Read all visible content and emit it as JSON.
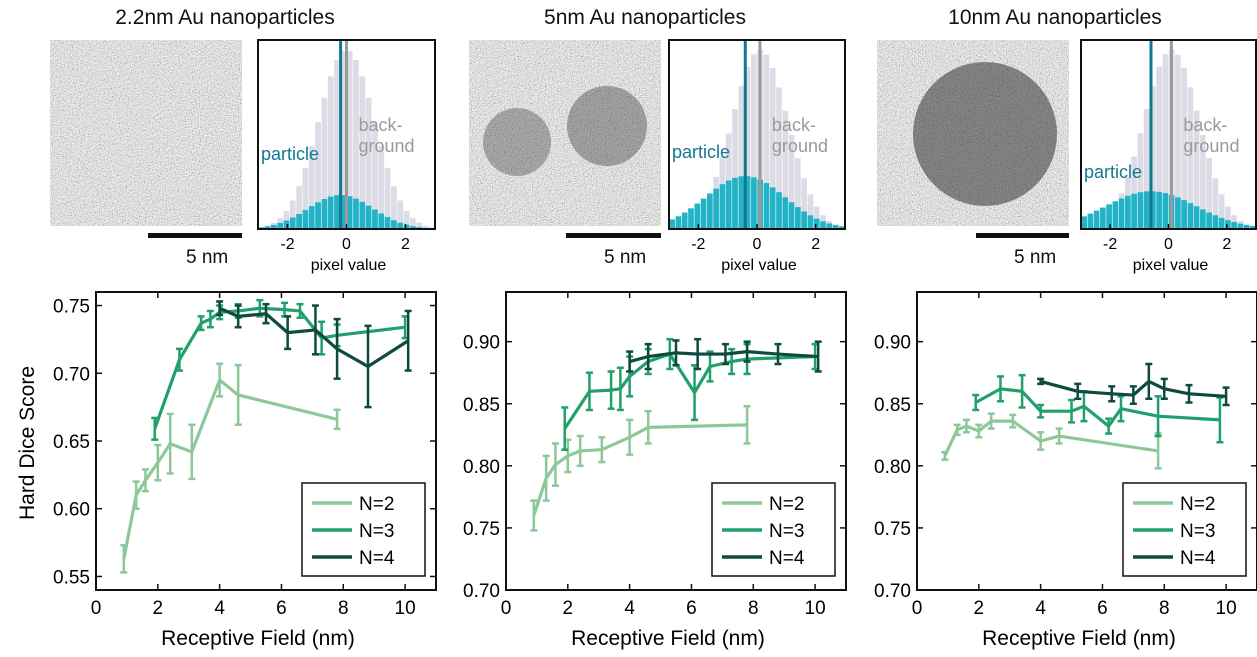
{
  "panels": [
    {
      "title": "2.2nm Au nanoparticles",
      "scale_label": "5 nm",
      "histogram": {
        "xlabel": "pixel value",
        "xticks": [
          "-2",
          "0",
          "2"
        ],
        "particle_label": "particle",
        "background_label": [
          "back-",
          "ground"
        ],
        "particle_mean": -0.2,
        "background_mean": 0.0
      }
    },
    {
      "title": "5nm Au nanoparticles",
      "scale_label": "5 nm",
      "histogram": {
        "xlabel": "pixel value",
        "xticks": [
          "-2",
          "0",
          "2"
        ],
        "particle_label": "particle",
        "background_label": [
          "back-",
          "ground"
        ],
        "particle_mean": -0.4,
        "background_mean": 0.1
      }
    },
    {
      "title": "10nm Au nanoparticles",
      "scale_label": "5 nm",
      "histogram": {
        "xlabel": "pixel value",
        "xticks": [
          "-2",
          "0",
          "2"
        ],
        "particle_label": "particle",
        "background_label": [
          "back-",
          "ground"
        ],
        "particle_mean": -0.6,
        "background_mean": 0.1
      }
    }
  ],
  "colors": {
    "N2": "#8ec89a",
    "N3": "#22a06b",
    "N4": "#0d4a40",
    "particle": "#23b3c6",
    "particle_line": "#12788e",
    "background": "#dcdce6",
    "background_line": "#9a9a9a"
  },
  "chart_data": [
    {
      "type": "line",
      "xlabel": "Receptive Field (nm)",
      "ylabel": "Hard Dice Score",
      "xlim": [
        0,
        11
      ],
      "ylim": [
        0.54,
        0.76
      ],
      "xticks": [
        0,
        2,
        4,
        6,
        8,
        10
      ],
      "yticks": [
        0.55,
        0.6,
        0.65,
        0.7,
        0.75
      ],
      "ytick_labels": [
        "0.55",
        "0.60",
        "0.65",
        "0.70",
        "0.75"
      ],
      "legend": "bottom-right",
      "series": [
        {
          "name": "N=2",
          "x": [
            0.9,
            1.3,
            1.6,
            2.0,
            2.4,
            3.1,
            4.0,
            4.6,
            7.8
          ],
          "y": [
            0.563,
            0.61,
            0.621,
            0.634,
            0.648,
            0.642,
            0.695,
            0.684,
            0.666
          ],
          "err": [
            0.01,
            0.01,
            0.008,
            0.013,
            0.022,
            0.02,
            0.012,
            0.022,
            0.007
          ]
        },
        {
          "name": "N=3",
          "x": [
            1.9,
            2.7,
            3.4,
            3.7,
            4.0,
            4.6,
            5.3,
            6.1,
            6.6,
            7.3,
            7.8,
            10.0
          ],
          "y": [
            0.659,
            0.71,
            0.737,
            0.74,
            0.745,
            0.746,
            0.748,
            0.747,
            0.746,
            0.726,
            0.728,
            0.734
          ],
          "err": [
            0.008,
            0.008,
            0.005,
            0.006,
            0.005,
            0.005,
            0.006,
            0.005,
            0.005,
            0.012,
            0.008,
            0.008
          ]
        },
        {
          "name": "N=4",
          "x": [
            4.0,
            4.6,
            5.5,
            6.2,
            7.1,
            7.8,
            8.8,
            10.1
          ],
          "y": [
            0.748,
            0.742,
            0.744,
            0.73,
            0.732,
            0.718,
            0.705,
            0.724
          ],
          "err": [
            0.005,
            0.008,
            0.007,
            0.012,
            0.018,
            0.022,
            0.03,
            0.022
          ]
        }
      ]
    },
    {
      "type": "line",
      "xlabel": "Receptive Field (nm)",
      "ylabel": "",
      "xlim": [
        0,
        11
      ],
      "ylim": [
        0.7,
        0.94
      ],
      "xticks": [
        0,
        2,
        4,
        6,
        8,
        10
      ],
      "yticks": [
        0.7,
        0.75,
        0.8,
        0.85,
        0.9
      ],
      "ytick_labels": [
        "0.70",
        "0.75",
        "0.80",
        "0.85",
        "0.90"
      ],
      "legend": "bottom-right",
      "series": [
        {
          "name": "N=2",
          "x": [
            0.9,
            1.3,
            1.6,
            2.0,
            2.4,
            3.1,
            4.0,
            4.6,
            7.8
          ],
          "y": [
            0.76,
            0.79,
            0.801,
            0.808,
            0.812,
            0.813,
            0.823,
            0.831,
            0.833
          ],
          "err": [
            0.012,
            0.018,
            0.017,
            0.013,
            0.012,
            0.01,
            0.014,
            0.013,
            0.015
          ]
        },
        {
          "name": "N=3",
          "x": [
            1.9,
            2.7,
            3.4,
            3.7,
            4.0,
            4.6,
            5.3,
            6.1,
            6.6,
            7.3,
            7.8,
            10.0
          ],
          "y": [
            0.83,
            0.86,
            0.861,
            0.862,
            0.872,
            0.884,
            0.89,
            0.859,
            0.88,
            0.884,
            0.886,
            0.888
          ],
          "err": [
            0.017,
            0.015,
            0.015,
            0.017,
            0.016,
            0.01,
            0.012,
            0.022,
            0.012,
            0.01,
            0.012,
            0.01
          ]
        },
        {
          "name": "N=4",
          "x": [
            4.0,
            4.6,
            5.5,
            6.2,
            7.1,
            7.8,
            8.8,
            10.1
          ],
          "y": [
            0.884,
            0.888,
            0.891,
            0.89,
            0.89,
            0.892,
            0.89,
            0.888
          ],
          "err": [
            0.008,
            0.01,
            0.01,
            0.012,
            0.008,
            0.008,
            0.008,
            0.012
          ]
        }
      ]
    },
    {
      "type": "line",
      "xlabel": "Receptive Field (nm)",
      "ylabel": "",
      "xlim": [
        0,
        11
      ],
      "ylim": [
        0.7,
        0.94
      ],
      "xticks": [
        0,
        2,
        4,
        6,
        8,
        10
      ],
      "yticks": [
        0.7,
        0.75,
        0.8,
        0.85,
        0.9
      ],
      "ytick_labels": [
        "0.70",
        "0.75",
        "0.80",
        "0.85",
        "0.90"
      ],
      "legend": "bottom-right",
      "series": [
        {
          "name": "N=2",
          "x": [
            0.9,
            1.3,
            1.6,
            2.0,
            2.4,
            3.1,
            4.0,
            4.6,
            7.8
          ],
          "y": [
            0.808,
            0.829,
            0.832,
            0.828,
            0.836,
            0.836,
            0.82,
            0.824,
            0.812
          ],
          "err": [
            0.003,
            0.004,
            0.005,
            0.005,
            0.006,
            0.005,
            0.007,
            0.006,
            0.014
          ]
        },
        {
          "name": "N=3",
          "x": [
            1.9,
            2.7,
            3.4,
            4.0,
            5.0,
            5.4,
            6.2,
            6.6,
            7.8,
            9.8
          ],
          "y": [
            0.851,
            0.862,
            0.86,
            0.844,
            0.844,
            0.848,
            0.832,
            0.846,
            0.84,
            0.837
          ],
          "err": [
            0.006,
            0.01,
            0.013,
            0.005,
            0.009,
            0.012,
            0.006,
            0.01,
            0.016,
            0.018
          ]
        },
        {
          "name": "N=4",
          "x": [
            4.0,
            5.2,
            6.3,
            7.0,
            7.5,
            8.0,
            8.8,
            10.0
          ],
          "y": [
            0.868,
            0.86,
            0.858,
            0.857,
            0.868,
            0.862,
            0.858,
            0.856
          ],
          "err": [
            0.002,
            0.006,
            0.006,
            0.007,
            0.014,
            0.008,
            0.007,
            0.007
          ]
        }
      ]
    }
  ]
}
